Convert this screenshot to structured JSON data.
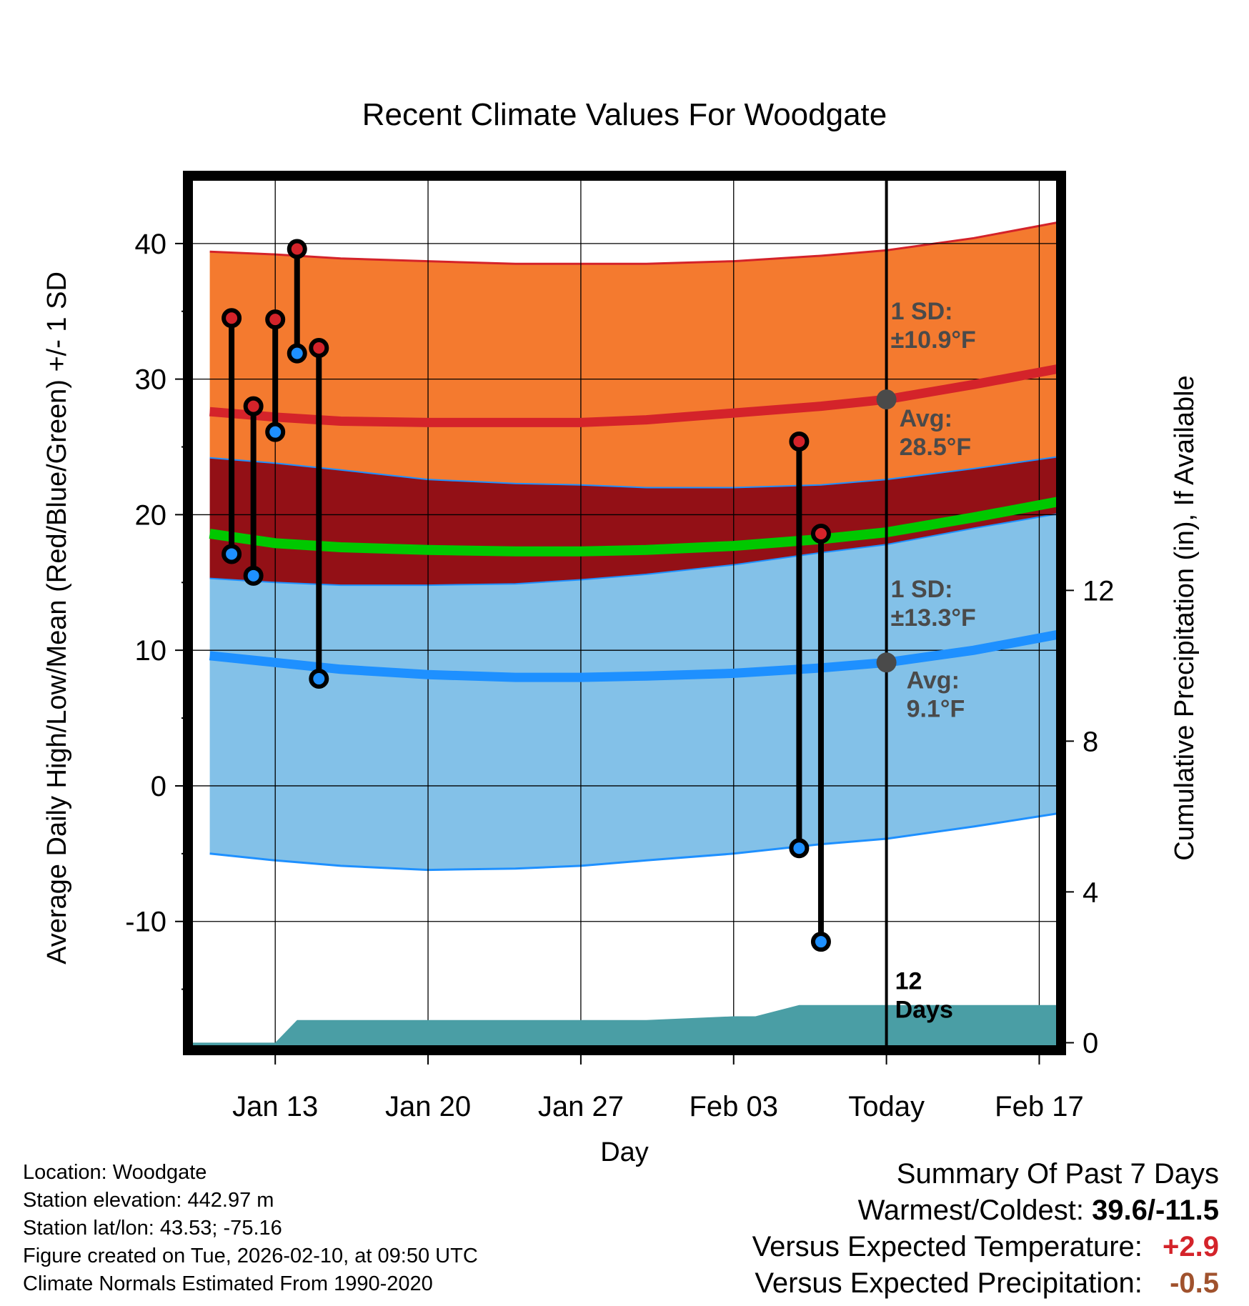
{
  "chart_data": {
    "type": "line",
    "title": "Recent Climate Values For Woodgate",
    "xlabel": "Day",
    "ylabel": "Average Daily High/Low/Mean (Red/Blue/Green) +/- 1 SD",
    "y2label": "Cumulative Precipitation (in), If Available",
    "x_range": [
      -4,
      36
    ],
    "ylim": [
      -19.5,
      45
    ],
    "y2lim": [
      -0.2,
      23
    ],
    "x_ticks": [
      {
        "day": 0,
        "label": "Jan 13"
      },
      {
        "day": 7,
        "label": "Jan 20"
      },
      {
        "day": 14,
        "label": "Jan 27"
      },
      {
        "day": 21,
        "label": "Feb 03"
      },
      {
        "day": 28,
        "label": "Today"
      },
      {
        "day": 35,
        "label": "Feb 17"
      }
    ],
    "y_ticks": [
      -10,
      0,
      10,
      20,
      30,
      40
    ],
    "y2_ticks": [
      0,
      4,
      8,
      12
    ],
    "today_day": 28,
    "normals_days": [
      -3,
      0,
      3,
      7,
      11,
      14,
      17,
      21,
      25,
      28,
      32,
      36
    ],
    "normal_high": [
      27.6,
      27.2,
      26.9,
      26.8,
      26.8,
      26.8,
      27.0,
      27.5,
      28.0,
      28.5,
      29.6,
      30.8
    ],
    "normal_high_upper": [
      39.4,
      39.2,
      38.9,
      38.7,
      38.5,
      38.5,
      38.5,
      38.7,
      39.1,
      39.5,
      40.4,
      41.6
    ],
    "normal_high_lower": [
      24.2,
      23.8,
      23.3,
      22.6,
      22.3,
      22.2,
      22.0,
      22.0,
      22.2,
      22.6,
      23.4,
      24.3
    ],
    "normal_mean": [
      18.6,
      17.9,
      17.6,
      17.4,
      17.3,
      17.3,
      17.4,
      17.7,
      18.2,
      18.7,
      19.8,
      21.0
    ],
    "normal_low": [
      9.6,
      9.1,
      8.6,
      8.2,
      8.0,
      8.0,
      8.1,
      8.3,
      8.7,
      9.1,
      10.0,
      11.2
    ],
    "normal_low_upper": [
      15.3,
      15.0,
      14.8,
      14.8,
      14.9,
      15.2,
      15.6,
      16.3,
      17.2,
      17.8,
      19.0,
      20.1
    ],
    "normal_low_lower": [
      -5.0,
      -5.5,
      -5.9,
      -6.2,
      -6.1,
      -5.9,
      -5.5,
      -5.0,
      -4.3,
      -3.9,
      -3.0,
      -2.0
    ],
    "high_sd": "1 SD:\n±10.9°F",
    "high_avg_label": "Avg:\n28.5°F",
    "low_sd": "1 SD:\n±13.3°F",
    "low_avg_label": "Avg:\n9.1°F",
    "high_avg_value": 28.5,
    "low_avg_value": 9.1,
    "observations": [
      {
        "day": -2,
        "high": 34.5,
        "low": 17.1
      },
      {
        "day": -1,
        "high": 28.0,
        "low": 15.5
      },
      {
        "day": 0,
        "high": 34.4,
        "low": 26.1
      },
      {
        "day": 1,
        "high": 39.6,
        "low": 31.9
      },
      {
        "day": 2,
        "high": 32.3,
        "low": 7.9
      },
      {
        "day": 24,
        "high": 25.4,
        "low": -4.6
      },
      {
        "day": 25,
        "high": 18.6,
        "low": -11.5
      }
    ],
    "precip_days": [
      -4,
      0,
      1,
      9,
      17,
      21,
      22,
      24,
      35.8
    ],
    "precip_values": [
      0,
      0,
      0.6,
      0.6,
      0.6,
      0.7,
      0.7,
      1.0,
      1.0
    ],
    "days_label": "12\nDays",
    "colors": {
      "high_band": "#f47a2f",
      "high_line": "#d4232a",
      "overlap": "#931016",
      "mean_line": "#00c800",
      "low_band": "#83c1e8",
      "low_line": "#1e90ff",
      "precip": "#4a9ea5",
      "avg_dot": "#4a4a4a"
    }
  },
  "info": {
    "location": "Location: Woodgate",
    "elevation": "Station elevation: 442.97 m",
    "latlon": "Station lat/lon: 43.53; -75.16",
    "created": "Figure created on Tue, 2026-02-10, at 09:50 UTC",
    "normals": "Climate Normals Estimated From 1990-2020"
  },
  "summary": {
    "title": "Summary Of Past 7 Days",
    "warm_cold_label": "Warmest/Coldest:",
    "warm_cold_value": "39.6/-11.5",
    "temp_label": "Versus Expected Temperature:",
    "temp_value": "+2.9",
    "temp_color": "#d4232a",
    "precip_label": "Versus Expected Precipitation:",
    "precip_value": "-0.5",
    "precip_color": "#a0522d"
  }
}
